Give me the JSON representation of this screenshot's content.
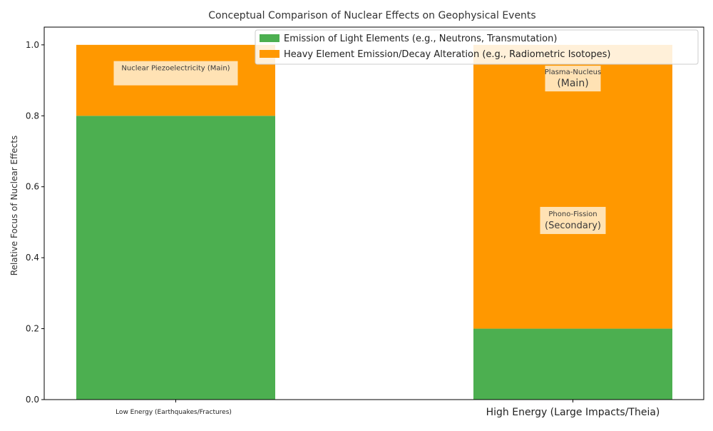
{
  "chart_data": {
    "type": "bar",
    "stacked": true,
    "title": "Conceptual Comparison of Nuclear Effects on Geophysical Events",
    "xlabel": "",
    "ylabel": "Relative Focus of Nuclear Effects",
    "ylim": [
      0,
      1.05
    ],
    "yticks": [
      "0.0",
      "0.2",
      "0.4",
      "0.6",
      "0.8",
      "1.0"
    ],
    "grid": false,
    "legend_position": "top-right",
    "categories": [
      "Low Energy (Earthquakes/Fractures)",
      "High Energy (Large Impacts/Theia)"
    ],
    "series": [
      {
        "name": "Emission of Light Elements (e.g., Neutrons, Transmutation)",
        "color": "#4caf50",
        "values": [
          0.8,
          0.2
        ]
      },
      {
        "name": "Heavy Element Emission/Decay Alteration (e.g., Radiometric Isotopes)",
        "color": "#ff9800",
        "values": [
          0.2,
          0.8
        ]
      }
    ],
    "annotations": [
      {
        "category": 0,
        "y": 0.92,
        "lines": [
          "Nuclear Piezoelectricity (Main)"
        ]
      },
      {
        "category": 1,
        "y": 0.905,
        "lines": [
          "Plasma-Nucleus",
          "(Main)"
        ]
      },
      {
        "category": 1,
        "y": 0.505,
        "lines": [
          "Phono-Fission",
          "(Secondary)"
        ]
      }
    ]
  }
}
